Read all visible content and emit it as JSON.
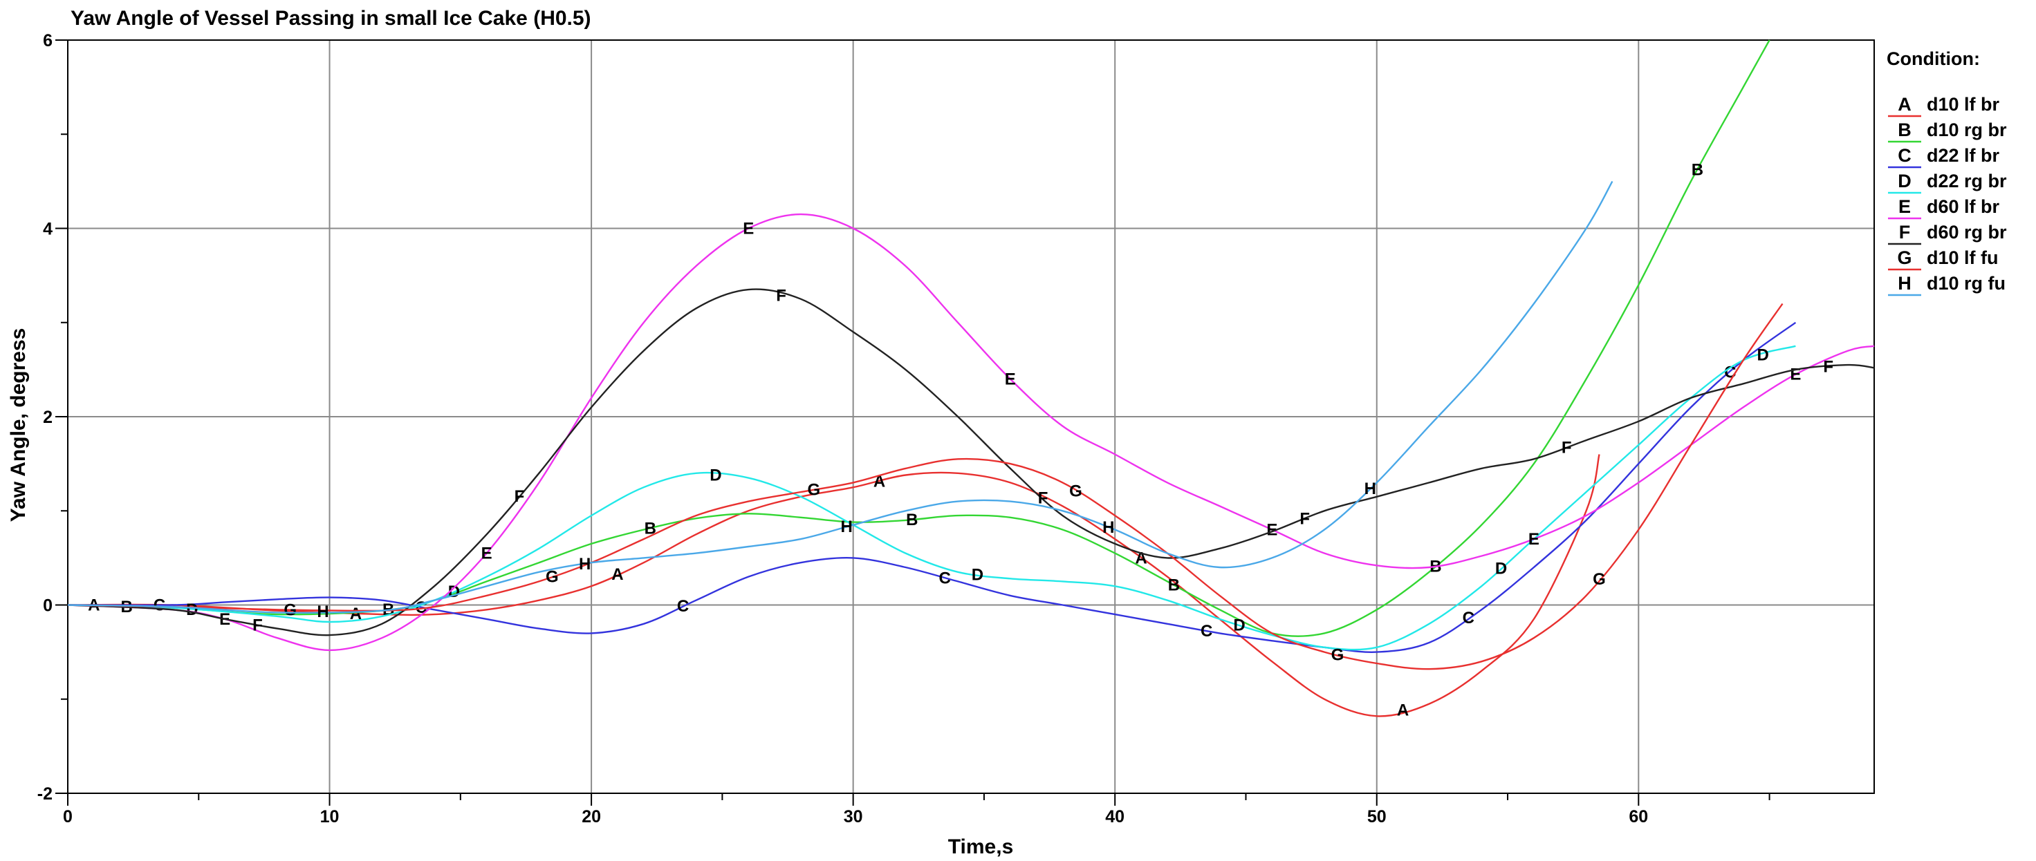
{
  "chart_data": {
    "type": "line",
    "title": "Yaw Angle of Vessel Passing in small Ice Cake (H0.5)",
    "xlabel": "Time,s",
    "ylabel": "Yaw Angle, degress",
    "xlim": [
      0,
      69
    ],
    "ylim": [
      -2,
      6
    ],
    "x_ticks": [
      "0",
      "10",
      "20",
      "30",
      "40",
      "50",
      "60"
    ],
    "y_ticks": [
      "-2",
      "0",
      "2",
      "4",
      "6"
    ],
    "grid": true,
    "legend_title": "Condition:",
    "legend_position": "right",
    "series": [
      {
        "marker": "A",
        "name": "d10 lf br",
        "color": "#e8302f",
        "points": [
          [
            0,
            0
          ],
          [
            4,
            0
          ],
          [
            8,
            -0.06
          ],
          [
            12,
            -0.1
          ],
          [
            14,
            -0.1
          ],
          [
            16,
            -0.05
          ],
          [
            18,
            0.05
          ],
          [
            20,
            0.2
          ],
          [
            22,
            0.45
          ],
          [
            24,
            0.75
          ],
          [
            26,
            1.0
          ],
          [
            28,
            1.15
          ],
          [
            30,
            1.25
          ],
          [
            32,
            1.38
          ],
          [
            34,
            1.4
          ],
          [
            36,
            1.3
          ],
          [
            38,
            1.05
          ],
          [
            40,
            0.7
          ],
          [
            42,
            0.3
          ],
          [
            44,
            -0.15
          ],
          [
            46,
            -0.6
          ],
          [
            48,
            -1.0
          ],
          [
            50,
            -1.18
          ],
          [
            52,
            -1.05
          ],
          [
            54,
            -0.7
          ],
          [
            56,
            -0.15
          ],
          [
            58,
            1.0
          ],
          [
            58.5,
            1.6
          ]
        ]
      },
      {
        "marker": "B",
        "name": "d10 rg br",
        "color": "#33d633",
        "points": [
          [
            0,
            0
          ],
          [
            4,
            -0.03
          ],
          [
            8,
            -0.1
          ],
          [
            12,
            -0.06
          ],
          [
            14,
            0.05
          ],
          [
            16,
            0.25
          ],
          [
            18,
            0.45
          ],
          [
            20,
            0.65
          ],
          [
            22,
            0.8
          ],
          [
            24,
            0.92
          ],
          [
            26,
            0.97
          ],
          [
            28,
            0.93
          ],
          [
            30,
            0.88
          ],
          [
            32,
            0.9
          ],
          [
            34,
            0.95
          ],
          [
            36,
            0.93
          ],
          [
            38,
            0.8
          ],
          [
            40,
            0.55
          ],
          [
            42,
            0.25
          ],
          [
            44,
            -0.05
          ],
          [
            46,
            -0.3
          ],
          [
            48,
            -0.3
          ],
          [
            50,
            -0.05
          ],
          [
            52,
            0.35
          ],
          [
            54,
            0.85
          ],
          [
            56,
            1.5
          ],
          [
            58,
            2.4
          ],
          [
            60,
            3.4
          ],
          [
            62,
            4.5
          ],
          [
            64,
            5.5
          ],
          [
            65,
            6
          ]
        ]
      },
      {
        "marker": "C",
        "name": "d22 lf br",
        "color": "#3333dd",
        "points": [
          [
            0,
            0
          ],
          [
            4,
            0
          ],
          [
            6,
            0.03
          ],
          [
            8,
            0.06
          ],
          [
            10,
            0.08
          ],
          [
            12,
            0.05
          ],
          [
            14,
            -0.05
          ],
          [
            16,
            -0.15
          ],
          [
            18,
            -0.25
          ],
          [
            20,
            -0.3
          ],
          [
            22,
            -0.2
          ],
          [
            24,
            0.05
          ],
          [
            26,
            0.3
          ],
          [
            28,
            0.45
          ],
          [
            30,
            0.5
          ],
          [
            32,
            0.4
          ],
          [
            34,
            0.25
          ],
          [
            36,
            0.1
          ],
          [
            38,
            0
          ],
          [
            40,
            -0.1
          ],
          [
            42,
            -0.2
          ],
          [
            44,
            -0.3
          ],
          [
            46,
            -0.38
          ],
          [
            48,
            -0.45
          ],
          [
            50,
            -0.5
          ],
          [
            52,
            -0.4
          ],
          [
            54,
            -0.05
          ],
          [
            56,
            0.4
          ],
          [
            58,
            0.9
          ],
          [
            60,
            1.5
          ],
          [
            62,
            2.1
          ],
          [
            64,
            2.6
          ],
          [
            66,
            3.0
          ]
        ]
      },
      {
        "marker": "D",
        "name": "d22 rg br",
        "color": "#22e8e8",
        "points": [
          [
            0,
            0
          ],
          [
            4,
            -0.03
          ],
          [
            8,
            -0.12
          ],
          [
            10,
            -0.18
          ],
          [
            12,
            -0.12
          ],
          [
            14,
            0.05
          ],
          [
            16,
            0.3
          ],
          [
            18,
            0.6
          ],
          [
            20,
            0.95
          ],
          [
            22,
            1.25
          ],
          [
            24,
            1.4
          ],
          [
            26,
            1.35
          ],
          [
            28,
            1.15
          ],
          [
            30,
            0.85
          ],
          [
            32,
            0.55
          ],
          [
            34,
            0.35
          ],
          [
            36,
            0.28
          ],
          [
            38,
            0.25
          ],
          [
            40,
            0.2
          ],
          [
            42,
            0.05
          ],
          [
            44,
            -0.15
          ],
          [
            46,
            -0.32
          ],
          [
            48,
            -0.45
          ],
          [
            50,
            -0.45
          ],
          [
            52,
            -0.2
          ],
          [
            54,
            0.2
          ],
          [
            56,
            0.7
          ],
          [
            58,
            1.2
          ],
          [
            60,
            1.7
          ],
          [
            62,
            2.2
          ],
          [
            64,
            2.6
          ],
          [
            66,
            2.75
          ]
        ]
      },
      {
        "marker": "E",
        "name": "d60 lf br",
        "color": "#ee33ee",
        "points": [
          [
            0,
            0
          ],
          [
            4,
            -0.05
          ],
          [
            6,
            -0.15
          ],
          [
            8,
            -0.35
          ],
          [
            10,
            -0.48
          ],
          [
            12,
            -0.35
          ],
          [
            14,
            0
          ],
          [
            16,
            0.55
          ],
          [
            18,
            1.3
          ],
          [
            20,
            2.2
          ],
          [
            22,
            3.0
          ],
          [
            24,
            3.6
          ],
          [
            26,
            4.0
          ],
          [
            28,
            4.15
          ],
          [
            30,
            4.0
          ],
          [
            32,
            3.6
          ],
          [
            34,
            3.0
          ],
          [
            36,
            2.4
          ],
          [
            38,
            1.9
          ],
          [
            40,
            1.6
          ],
          [
            42,
            1.3
          ],
          [
            44,
            1.05
          ],
          [
            46,
            0.8
          ],
          [
            48,
            0.55
          ],
          [
            50,
            0.42
          ],
          [
            52,
            0.4
          ],
          [
            54,
            0.52
          ],
          [
            56,
            0.7
          ],
          [
            58,
            0.95
          ],
          [
            60,
            1.3
          ],
          [
            62,
            1.7
          ],
          [
            64,
            2.1
          ],
          [
            66,
            2.45
          ],
          [
            68,
            2.7
          ],
          [
            69,
            2.75
          ]
        ]
      },
      {
        "marker": "F",
        "name": "d60 rg br",
        "color": "#222222",
        "points": [
          [
            0,
            0
          ],
          [
            4,
            -0.05
          ],
          [
            6,
            -0.15
          ],
          [
            8,
            -0.25
          ],
          [
            10,
            -0.32
          ],
          [
            12,
            -0.2
          ],
          [
            14,
            0.2
          ],
          [
            16,
            0.75
          ],
          [
            18,
            1.4
          ],
          [
            20,
            2.1
          ],
          [
            22,
            2.7
          ],
          [
            24,
            3.15
          ],
          [
            26,
            3.35
          ],
          [
            28,
            3.25
          ],
          [
            30,
            2.9
          ],
          [
            32,
            2.5
          ],
          [
            34,
            2.0
          ],
          [
            36,
            1.45
          ],
          [
            38,
            0.95
          ],
          [
            40,
            0.65
          ],
          [
            42,
            0.5
          ],
          [
            44,
            0.6
          ],
          [
            46,
            0.78
          ],
          [
            48,
            1.0
          ],
          [
            50,
            1.15
          ],
          [
            52,
            1.3
          ],
          [
            54,
            1.45
          ],
          [
            56,
            1.55
          ],
          [
            58,
            1.75
          ],
          [
            60,
            1.95
          ],
          [
            62,
            2.2
          ],
          [
            64,
            2.35
          ],
          [
            66,
            2.5
          ],
          [
            68,
            2.55
          ],
          [
            69,
            2.52
          ]
        ]
      },
      {
        "marker": "G",
        "name": "d10 lf fu",
        "color": "#e8302f",
        "points": [
          [
            0,
            0
          ],
          [
            4,
            -0.02
          ],
          [
            8,
            -0.05
          ],
          [
            12,
            -0.06
          ],
          [
            14,
            -0.02
          ],
          [
            16,
            0.1
          ],
          [
            18,
            0.25
          ],
          [
            20,
            0.45
          ],
          [
            22,
            0.7
          ],
          [
            24,
            0.95
          ],
          [
            26,
            1.1
          ],
          [
            28,
            1.2
          ],
          [
            30,
            1.3
          ],
          [
            32,
            1.45
          ],
          [
            34,
            1.55
          ],
          [
            36,
            1.5
          ],
          [
            38,
            1.3
          ],
          [
            40,
            0.95
          ],
          [
            42,
            0.55
          ],
          [
            44,
            0.1
          ],
          [
            46,
            -0.3
          ],
          [
            48,
            -0.5
          ],
          [
            50,
            -0.62
          ],
          [
            52,
            -0.68
          ],
          [
            54,
            -0.6
          ],
          [
            56,
            -0.35
          ],
          [
            58,
            0.1
          ],
          [
            60,
            0.8
          ],
          [
            62,
            1.7
          ],
          [
            64,
            2.6
          ],
          [
            65.5,
            3.2
          ]
        ]
      },
      {
        "marker": "H",
        "name": "d10 rg fu",
        "color": "#4aa8e8",
        "points": [
          [
            0,
            0
          ],
          [
            4,
            -0.02
          ],
          [
            8,
            -0.08
          ],
          [
            12,
            -0.06
          ],
          [
            14,
            0.05
          ],
          [
            16,
            0.2
          ],
          [
            18,
            0.35
          ],
          [
            20,
            0.45
          ],
          [
            22,
            0.5
          ],
          [
            24,
            0.55
          ],
          [
            26,
            0.62
          ],
          [
            28,
            0.7
          ],
          [
            30,
            0.85
          ],
          [
            32,
            1.0
          ],
          [
            34,
            1.1
          ],
          [
            36,
            1.1
          ],
          [
            38,
            1.0
          ],
          [
            40,
            0.8
          ],
          [
            42,
            0.55
          ],
          [
            44,
            0.4
          ],
          [
            46,
            0.5
          ],
          [
            48,
            0.8
          ],
          [
            50,
            1.3
          ],
          [
            52,
            1.9
          ],
          [
            54,
            2.5
          ],
          [
            56,
            3.2
          ],
          [
            58,
            4.0
          ],
          [
            59,
            4.5
          ]
        ]
      }
    ]
  }
}
